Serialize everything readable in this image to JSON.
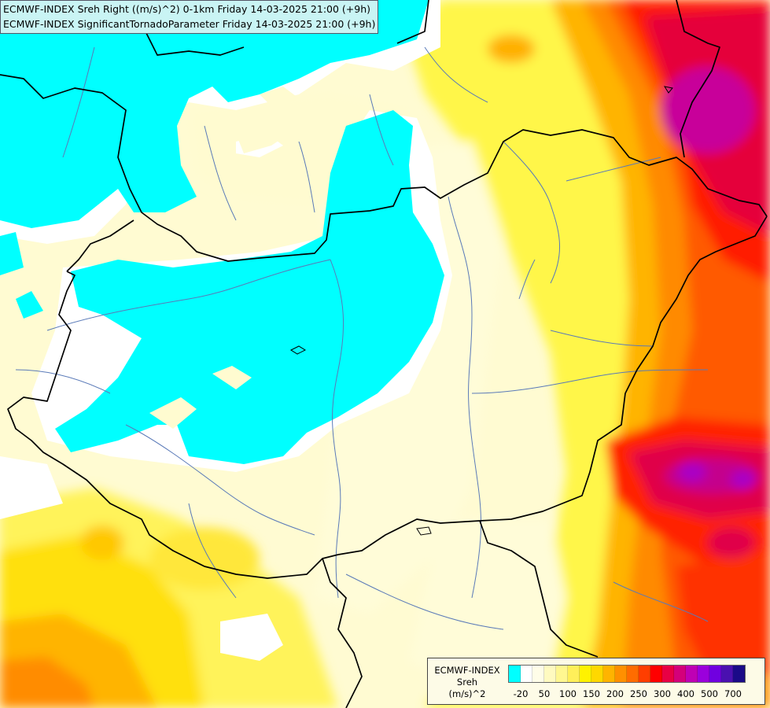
{
  "header": {
    "line1": "ECMWF-INDEX Sreh Right ((m/s)^2) 0-1km Friday 14-03-2025 21:00 (+9h)",
    "line2": "ECMWF-INDEX SignificantTornadoParameter Friday 14-03-2025 21:00 (+9h)"
  },
  "legend": {
    "source": "ECMWF-INDEX",
    "variable": "Sreh",
    "unit": "(m/s)^2",
    "colors": [
      "#00ffff",
      "#ffffff",
      "#fffde8",
      "#fffac0",
      "#fff791",
      "#ffef5a",
      "#fff200",
      "#ffd800",
      "#ffb400",
      "#ff9000",
      "#ff6c00",
      "#ff3e00",
      "#ff0000",
      "#e80044",
      "#d4007a",
      "#bf00b4",
      "#9b00dc",
      "#7000e0",
      "#4a10b0",
      "#1a0a88"
    ],
    "tick_labels": [
      "-20",
      "50",
      "100",
      "150",
      "200",
      "250",
      "300",
      "400",
      "500",
      "700"
    ]
  },
  "icons": {
    "map": "country-border-map"
  }
}
